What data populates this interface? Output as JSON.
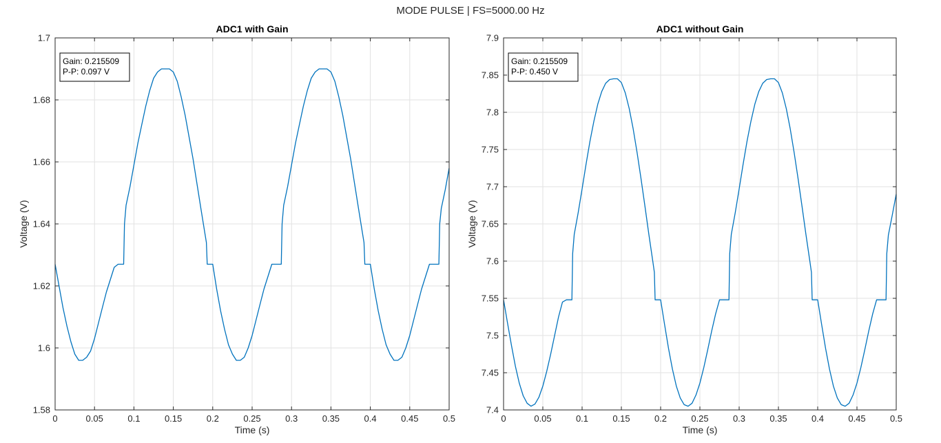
{
  "figure": {
    "suptitle": "MODE PULSE | FS=5000.00 Hz"
  },
  "colors": {
    "line": "#0072BD",
    "grid": "#e2e2e2",
    "axis": "#262626",
    "background": "#ffffff"
  },
  "chart_data": [
    {
      "type": "line",
      "title": "ADC1 with Gain",
      "xlabel": "Time (s)",
      "ylabel": "Voltage (V)",
      "xlim": [
        0,
        0.5
      ],
      "ylim": [
        1.58,
        1.7
      ],
      "xticks": [
        0,
        0.05,
        0.1,
        0.15,
        0.2,
        0.25,
        0.3,
        0.35,
        0.4,
        0.45,
        0.5
      ],
      "xtick_labels": [
        "0",
        "0.05",
        "0.1",
        "0.15",
        "0.2",
        "0.25",
        "0.3",
        "0.35",
        "0.4",
        "0.45",
        "0.5"
      ],
      "yticks": [
        1.58,
        1.6,
        1.62,
        1.64,
        1.66,
        1.68,
        1.7
      ],
      "ytick_labels": [
        "1.58",
        "1.6",
        "1.62",
        "1.64",
        "1.66",
        "1.68",
        "1.7"
      ],
      "grid": true,
      "legend": "none",
      "annotation": {
        "lines": [
          "Gain: 0.215509",
          "P-P: 0.097 V"
        ],
        "placement": "top-left"
      },
      "series": [
        {
          "x": [
            0,
            0.005,
            0.01,
            0.015,
            0.02,
            0.025,
            0.03,
            0.035,
            0.04,
            0.045,
            0.05,
            0.055,
            0.06,
            0.065,
            0.07,
            0.075,
            0.08,
            0.085,
            0.087,
            0.088,
            0.09,
            0.095,
            0.1,
            0.105,
            0.11,
            0.115,
            0.12,
            0.125,
            0.13,
            0.135,
            0.14,
            0.145,
            0.15,
            0.155,
            0.16,
            0.165,
            0.17,
            0.175,
            0.18,
            0.185,
            0.19,
            0.192,
            0.193,
            0.195,
            0.2,
            0.205,
            0.21,
            0.215,
            0.22,
            0.225,
            0.23,
            0.235,
            0.24,
            0.245,
            0.25,
            0.255,
            0.26,
            0.265,
            0.27,
            0.275,
            0.28,
            0.285,
            0.287,
            0.288,
            0.29,
            0.295,
            0.3,
            0.305,
            0.31,
            0.315,
            0.32,
            0.325,
            0.33,
            0.335,
            0.34,
            0.345,
            0.35,
            0.355,
            0.36,
            0.365,
            0.37,
            0.375,
            0.38,
            0.385,
            0.39,
            0.392,
            0.393,
            0.395,
            0.4,
            0.405,
            0.41,
            0.415,
            0.42,
            0.425,
            0.43,
            0.435,
            0.44,
            0.445,
            0.45,
            0.455,
            0.46,
            0.465,
            0.47,
            0.475,
            0.48,
            0.485,
            0.487,
            0.488,
            0.49,
            0.495,
            0.5
          ],
          "y": [
            1.627,
            1.62,
            1.613,
            1.607,
            1.602,
            1.598,
            1.596,
            1.596,
            1.597,
            1.599,
            1.603,
            1.608,
            1.613,
            1.618,
            1.622,
            1.626,
            1.627,
            1.627,
            1.627,
            1.64,
            1.646,
            1.652,
            1.659,
            1.666,
            1.672,
            1.678,
            1.683,
            1.687,
            1.689,
            1.69,
            1.69,
            1.69,
            1.689,
            1.686,
            1.681,
            1.675,
            1.668,
            1.661,
            1.653,
            1.645,
            1.637,
            1.634,
            1.627,
            1.627,
            1.627,
            1.619,
            1.612,
            1.606,
            1.601,
            1.598,
            1.596,
            1.596,
            1.597,
            1.6,
            1.604,
            1.609,
            1.614,
            1.619,
            1.623,
            1.627,
            1.627,
            1.627,
            1.627,
            1.64,
            1.646,
            1.652,
            1.659,
            1.666,
            1.672,
            1.678,
            1.683,
            1.687,
            1.689,
            1.69,
            1.69,
            1.69,
            1.689,
            1.686,
            1.681,
            1.675,
            1.668,
            1.661,
            1.653,
            1.645,
            1.637,
            1.634,
            1.627,
            1.627,
            1.627,
            1.619,
            1.612,
            1.606,
            1.601,
            1.598,
            1.596,
            1.596,
            1.597,
            1.6,
            1.604,
            1.609,
            1.614,
            1.619,
            1.623,
            1.627,
            1.627,
            1.627,
            1.627,
            1.64,
            1.645,
            1.651,
            1.658
          ]
        }
      ]
    },
    {
      "type": "line",
      "title": "ADC1 without Gain",
      "xlabel": "Time (s)",
      "ylabel": "Voltage (V)",
      "xlim": [
        0,
        0.5
      ],
      "ylim": [
        7.4,
        7.9
      ],
      "xticks": [
        0,
        0.05,
        0.1,
        0.15,
        0.2,
        0.25,
        0.3,
        0.35,
        0.4,
        0.45,
        0.5
      ],
      "xtick_labels": [
        "0",
        "0.05",
        "0.1",
        "0.15",
        "0.2",
        "0.25",
        "0.3",
        "0.35",
        "0.4",
        "0.45",
        "0.5"
      ],
      "yticks": [
        7.4,
        7.45,
        7.5,
        7.55,
        7.6,
        7.65,
        7.7,
        7.75,
        7.8,
        7.85,
        7.9
      ],
      "ytick_labels": [
        "7.4",
        "7.45",
        "7.5",
        "7.55",
        "7.6",
        "7.65",
        "7.7",
        "7.75",
        "7.8",
        "7.85",
        "7.9"
      ],
      "grid": true,
      "legend": "none",
      "annotation": {
        "lines": [
          "Gain: 0.215509",
          "P-P: 0.450 V"
        ],
        "placement": "top-left"
      },
      "series": [
        {
          "x": [
            0,
            0.005,
            0.01,
            0.015,
            0.02,
            0.025,
            0.03,
            0.035,
            0.04,
            0.045,
            0.05,
            0.055,
            0.06,
            0.065,
            0.07,
            0.075,
            0.08,
            0.085,
            0.087,
            0.088,
            0.09,
            0.095,
            0.1,
            0.105,
            0.11,
            0.115,
            0.12,
            0.125,
            0.13,
            0.135,
            0.14,
            0.145,
            0.15,
            0.155,
            0.16,
            0.165,
            0.17,
            0.175,
            0.18,
            0.185,
            0.19,
            0.192,
            0.193,
            0.195,
            0.2,
            0.205,
            0.21,
            0.215,
            0.22,
            0.225,
            0.23,
            0.235,
            0.24,
            0.245,
            0.25,
            0.255,
            0.26,
            0.265,
            0.27,
            0.275,
            0.28,
            0.285,
            0.287,
            0.288,
            0.29,
            0.295,
            0.3,
            0.305,
            0.31,
            0.315,
            0.32,
            0.325,
            0.33,
            0.335,
            0.34,
            0.345,
            0.35,
            0.355,
            0.36,
            0.365,
            0.37,
            0.375,
            0.38,
            0.385,
            0.39,
            0.392,
            0.393,
            0.395,
            0.4,
            0.405,
            0.41,
            0.415,
            0.42,
            0.425,
            0.43,
            0.435,
            0.44,
            0.445,
            0.45,
            0.455,
            0.46,
            0.465,
            0.47,
            0.475,
            0.48,
            0.485,
            0.487,
            0.488,
            0.49,
            0.495,
            0.5
          ],
          "y": [
            7.548,
            7.517,
            7.487,
            7.459,
            7.436,
            7.419,
            7.409,
            7.405,
            7.408,
            7.417,
            7.432,
            7.452,
            7.475,
            7.5,
            7.525,
            7.545,
            7.548,
            7.548,
            7.548,
            7.61,
            7.636,
            7.665,
            7.697,
            7.73,
            7.761,
            7.788,
            7.811,
            7.828,
            7.839,
            7.844,
            7.845,
            7.845,
            7.84,
            7.826,
            7.805,
            7.778,
            7.746,
            7.711,
            7.674,
            7.636,
            7.6,
            7.585,
            7.548,
            7.548,
            7.548,
            7.515,
            7.483,
            7.455,
            7.432,
            7.416,
            7.407,
            7.405,
            7.409,
            7.42,
            7.436,
            7.457,
            7.481,
            7.506,
            7.529,
            7.548,
            7.548,
            7.548,
            7.548,
            7.61,
            7.636,
            7.665,
            7.697,
            7.73,
            7.761,
            7.788,
            7.811,
            7.828,
            7.839,
            7.844,
            7.845,
            7.845,
            7.84,
            7.826,
            7.805,
            7.778,
            7.746,
            7.711,
            7.674,
            7.636,
            7.6,
            7.585,
            7.548,
            7.548,
            7.548,
            7.515,
            7.483,
            7.455,
            7.432,
            7.416,
            7.407,
            7.405,
            7.409,
            7.42,
            7.436,
            7.457,
            7.481,
            7.506,
            7.529,
            7.548,
            7.548,
            7.548,
            7.548,
            7.61,
            7.635,
            7.662,
            7.69
          ]
        }
      ]
    }
  ]
}
